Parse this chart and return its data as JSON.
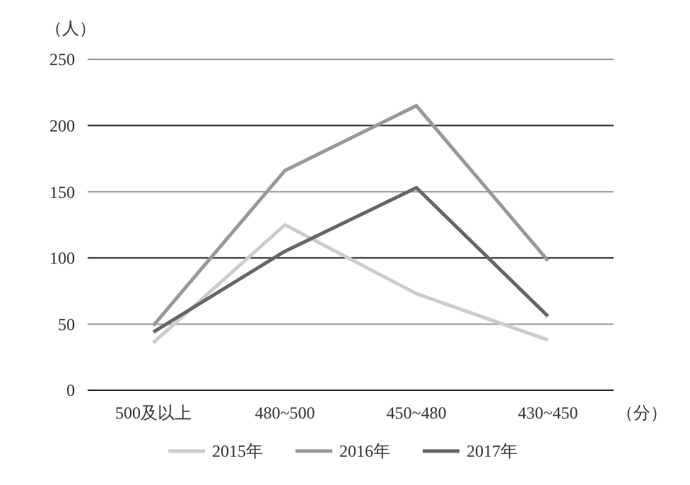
{
  "chart_data": {
    "type": "line",
    "ylabel": "（人）",
    "xlabel": "（分）",
    "categories": [
      "500及以上",
      "480~500",
      "450~480",
      "430~450"
    ],
    "series": [
      {
        "name": "2015年",
        "color": "#cccccc",
        "values": [
          36,
          125,
          73,
          38
        ]
      },
      {
        "name": "2016年",
        "color": "#999999",
        "values": [
          49,
          166,
          215,
          98
        ]
      },
      {
        "name": "2017年",
        "color": "#666666",
        "values": [
          44,
          105,
          153,
          56
        ]
      }
    ],
    "ylim": [
      0,
      250
    ],
    "yticks": [
      0,
      50,
      100,
      150,
      200,
      250
    ],
    "grid": "y",
    "legend": "bottom",
    "marker": "none",
    "line_style": "solid"
  }
}
